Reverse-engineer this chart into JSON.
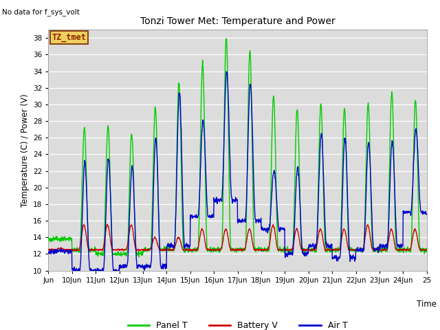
{
  "title": "Tonzi Tower Met: Temperature and Power",
  "ylabel": "Temperature (C) / Power (V)",
  "xlabel": "Time",
  "no_data_text": "No data for f_sys_volt",
  "box_label": "TZ_tmet",
  "ylim": [
    10,
    39
  ],
  "yticks": [
    10,
    12,
    14,
    16,
    18,
    20,
    22,
    24,
    26,
    28,
    30,
    32,
    34,
    36,
    38
  ],
  "bg_color": "#dcdcdc",
  "fig_color": "#ffffff",
  "panel_color": "#00cc00",
  "battery_color": "#cc0000",
  "air_color": "#0000cc",
  "x_start": 9.0,
  "x_end": 25.0,
  "xtick_labels": [
    "Jun",
    "10Jun",
    "11Jun",
    "12Jun",
    "13Jun",
    "14Jun",
    "15Jun",
    "16Jun",
    "17Jun",
    "18Jun",
    "19Jun",
    "20Jun",
    "21Jun",
    "22Jun",
    "23Jun",
    "24Jun",
    "25"
  ],
  "xtick_positions": [
    9.0,
    10.0,
    11.0,
    12.0,
    13.0,
    14.0,
    15.0,
    16.0,
    17.0,
    18.0,
    19.0,
    20.0,
    21.0,
    22.0,
    23.0,
    24.0,
    25.0
  ],
  "legend_labels": [
    "Panel T",
    "Battery V",
    "Air T"
  ],
  "legend_colors": [
    "#00cc00",
    "#cc0000",
    "#0000cc"
  ],
  "panel_peaks": [
    13.8,
    27.2,
    27.5,
    26.5,
    29.5,
    32.5,
    35.0,
    38.0,
    36.5,
    31.0,
    29.5,
    30.0,
    29.5,
    30.0,
    31.5,
    30.5
  ],
  "air_peaks": [
    12.5,
    23.0,
    23.5,
    22.5,
    26.0,
    31.5,
    28.0,
    34.0,
    32.5,
    22.0,
    22.5,
    26.5,
    26.0,
    25.5,
    25.5,
    27.0
  ],
  "air_troughs": [
    12.3,
    10.0,
    10.0,
    10.5,
    10.5,
    13.0,
    16.5,
    18.5,
    16.0,
    15.0,
    12.0,
    13.0,
    11.5,
    12.5,
    13.0,
    17.0
  ],
  "panel_troughs": [
    13.8,
    12.5,
    12.0,
    12.0,
    12.5,
    12.5,
    12.5,
    12.5,
    12.5,
    12.5,
    12.5,
    12.5,
    12.5,
    12.5,
    12.5,
    12.5
  ],
  "battery_peaks": [
    12.7,
    15.5,
    15.5,
    15.5,
    14.0,
    14.0,
    15.0,
    15.0,
    15.0,
    15.5,
    15.0,
    15.0,
    15.0,
    15.5,
    15.0,
    15.0
  ],
  "battery_base": 12.5
}
